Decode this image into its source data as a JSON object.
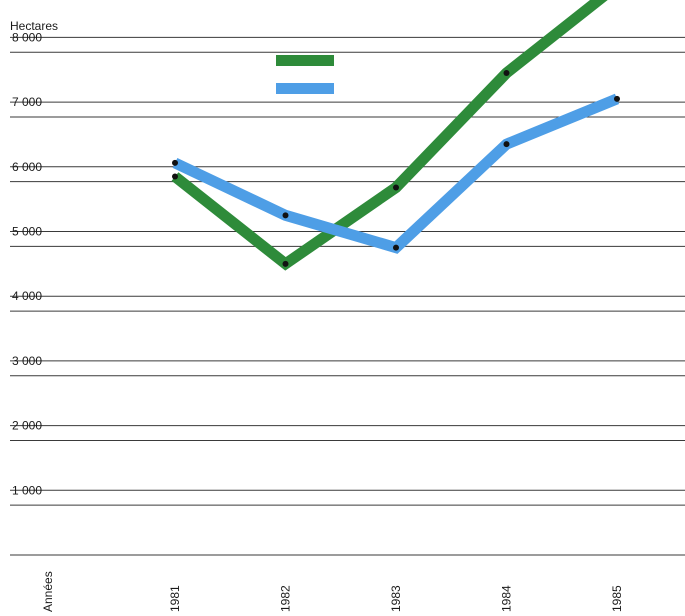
{
  "chart_data": {
    "type": "line",
    "title": "",
    "ylabel": "Hectares",
    "xlabel": "Années",
    "categories": [
      "1981",
      "1982",
      "1983",
      "1984",
      "1985"
    ],
    "ylim": [
      0,
      8500
    ],
    "y_ticks": [
      {
        "value": 1000,
        "label": "1 000"
      },
      {
        "value": 2000,
        "label": "2 000"
      },
      {
        "value": 3000,
        "label": "3 000"
      },
      {
        "value": 4000,
        "label": "4 000"
      },
      {
        "value": 5000,
        "label": "5 000"
      },
      {
        "value": 6000,
        "label": "6 000"
      },
      {
        "value": 7000,
        "label": "7 000"
      },
      {
        "value": 8000,
        "label": "8 000"
      }
    ],
    "grid": true,
    "legend": "top-center, swatches only, no text",
    "series": [
      {
        "color": "#2e8b3a",
        "values": [
          5850,
          4500,
          5680,
          7450,
          8800
        ]
      },
      {
        "color": "#4e9ee6",
        "values": [
          6060,
          5250,
          4750,
          6350,
          7050
        ]
      }
    ]
  }
}
